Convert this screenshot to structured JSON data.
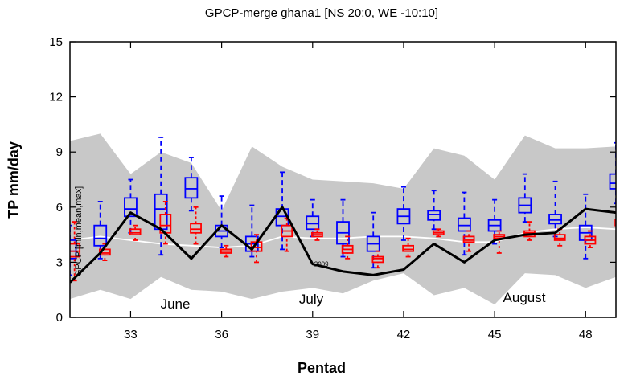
{
  "chart_data": {
    "type": "boxplot",
    "title": "GPCP-merge ghana1 [NS 20:0, WE -10:10]",
    "xlabel": "Pentad",
    "ylabel": "TP mm/day",
    "inner_label": "GPCP [min,mean,max]",
    "annotations": [
      "June",
      "July",
      "August"
    ],
    "x": [
      31,
      32,
      33,
      34,
      35,
      36,
      37,
      38,
      39,
      40,
      41,
      42,
      43,
      44,
      45,
      46,
      47,
      48,
      49
    ],
    "xlim": [
      31,
      49
    ],
    "ylim": [
      0,
      15
    ],
    "xticks": [
      33,
      36,
      39,
      42,
      45,
      48
    ],
    "yticks": [
      0,
      3,
      6,
      9,
      12,
      15
    ],
    "range": {
      "color": "#c8c8c8",
      "upper": [
        9.6,
        10.0,
        7.8,
        9.0,
        8.4,
        5.8,
        9.3,
        8.2,
        7.5,
        7.4,
        7.3,
        7.0,
        9.2,
        8.8,
        7.5,
        9.9,
        9.2,
        9.2,
        9.3
      ],
      "lower": [
        1.0,
        1.5,
        1.0,
        2.2,
        1.5,
        1.4,
        1.0,
        1.4,
        1.6,
        1.3,
        2.0,
        2.4,
        1.2,
        1.6,
        0.7,
        2.4,
        2.3,
        1.6,
        2.2
      ]
    },
    "mean": {
      "color": "#ffffff",
      "values": [
        4.2,
        4.4,
        4.2,
        4.0,
        3.9,
        3.8,
        3.9,
        4.4,
        4.3,
        4.3,
        4.4,
        4.4,
        4.3,
        4.1,
        4.1,
        4.6,
        4.8,
        4.9,
        4.8
      ]
    },
    "year": {
      "label": "2009",
      "color": "#000000",
      "values": [
        1.9,
        3.5,
        5.7,
        4.8,
        3.2,
        5.0,
        3.7,
        6.0,
        2.9,
        2.5,
        2.3,
        2.6,
        4.0,
        3.0,
        4.2,
        4.5,
        4.6,
        5.9,
        5.7
      ]
    },
    "boxes": [
      {
        "color": "#0000ff",
        "min": [
          2.3,
          3.2,
          4.6,
          3.4,
          5.8,
          3.8,
          3.3,
          3.7,
          4.4,
          3.3,
          2.7,
          4.2,
          4.8,
          3.4,
          4.0,
          5.2,
          4.4,
          3.2,
          6.2
        ],
        "q1": [
          3.2,
          3.9,
          5.5,
          4.8,
          6.5,
          4.4,
          3.6,
          5.0,
          4.8,
          4.0,
          3.6,
          5.1,
          5.3,
          4.7,
          4.7,
          5.7,
          5.1,
          4.2,
          7.0
        ],
        "median": [
          3.6,
          4.3,
          5.9,
          5.9,
          7.0,
          4.7,
          4.0,
          5.5,
          5.1,
          4.6,
          4.0,
          5.5,
          5.6,
          5.0,
          5.0,
          6.1,
          5.3,
          4.6,
          7.3
        ],
        "q3": [
          4.2,
          5.0,
          6.5,
          6.7,
          7.6,
          5.0,
          4.4,
          5.9,
          5.5,
          5.2,
          4.4,
          5.9,
          5.8,
          5.4,
          5.3,
          6.5,
          5.6,
          5.0,
          7.8
        ],
        "max": [
          5.0,
          6.3,
          7.5,
          9.8,
          8.7,
          6.6,
          6.1,
          7.9,
          6.4,
          6.4,
          5.7,
          7.1,
          6.9,
          6.8,
          6.4,
          7.8,
          7.4,
          6.7,
          9.5
        ]
      },
      {
        "color": "#ff0000",
        "min": [
          2.0,
          3.1,
          4.2,
          4.0,
          4.0,
          3.3,
          3.0,
          3.6,
          4.2,
          3.2,
          2.7,
          3.3,
          4.4,
          3.6,
          3.5,
          4.2,
          3.9,
          3.8,
          4.9
        ],
        "q1": [
          3.3,
          3.4,
          4.5,
          4.6,
          4.6,
          3.5,
          3.6,
          4.4,
          4.4,
          3.5,
          3.0,
          3.6,
          4.5,
          4.1,
          4.3,
          4.4,
          4.2,
          4.0,
          5.0
        ],
        "median": [
          3.6,
          3.5,
          4.6,
          5.0,
          4.8,
          3.6,
          3.8,
          4.7,
          4.5,
          3.7,
          3.2,
          3.7,
          4.6,
          4.2,
          4.4,
          4.6,
          4.3,
          4.2,
          5.1
        ],
        "q3": [
          4.0,
          3.7,
          4.8,
          5.6,
          5.1,
          3.7,
          4.1,
          5.0,
          4.6,
          3.9,
          3.3,
          3.9,
          4.7,
          4.4,
          4.5,
          4.7,
          4.5,
          4.4,
          5.3
        ],
        "max": [
          5.2,
          4.0,
          5.0,
          6.3,
          6.0,
          3.9,
          4.5,
          5.4,
          4.8,
          4.4,
          3.6,
          4.3,
          4.8,
          4.7,
          4.7,
          5.2,
          4.8,
          4.7,
          5.5
        ]
      }
    ]
  }
}
